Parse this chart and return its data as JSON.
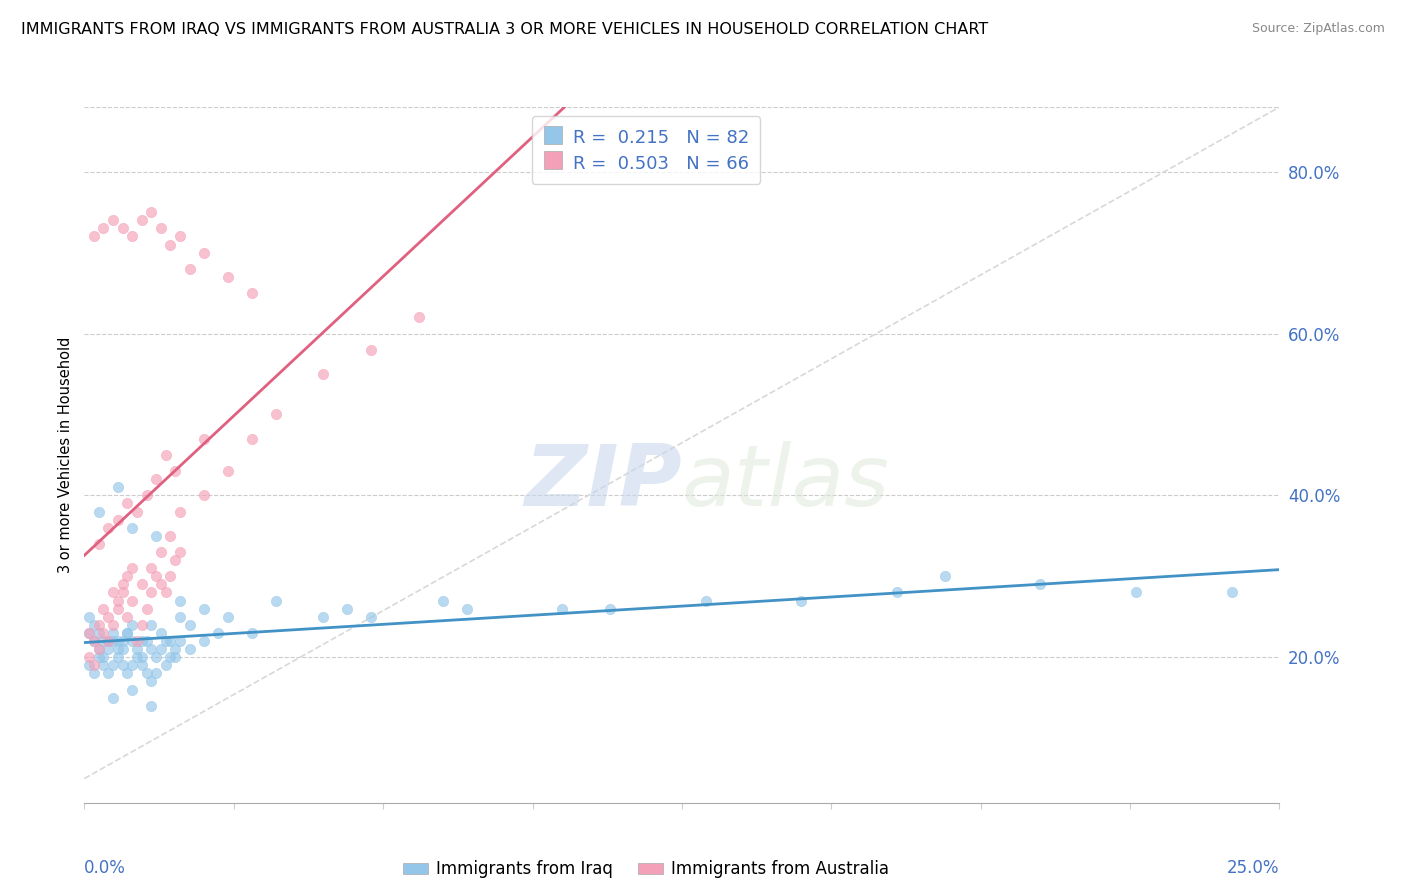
{
  "title": "IMMIGRANTS FROM IRAQ VS IMMIGRANTS FROM AUSTRALIA 3 OR MORE VEHICLES IN HOUSEHOLD CORRELATION CHART",
  "source": "Source: ZipAtlas.com",
  "ylabel": "3 or more Vehicles in Household",
  "ytick_values": [
    0.2,
    0.4,
    0.6,
    0.8
  ],
  "xrange": [
    0.0,
    0.25
  ],
  "yrange": [
    0.02,
    0.88
  ],
  "legend_iraq_r": "0.215",
  "legend_iraq_n": "82",
  "legend_aus_r": "0.503",
  "legend_aus_n": "66",
  "color_iraq": "#93c6e8",
  "color_aus": "#f4a0b8",
  "color_iraq_line": "#4292c6",
  "color_aus_line": "#e06080",
  "color_diagonal": "#d8d8d8",
  "title_fontsize": 11.5,
  "source_fontsize": 9,
  "watermark_zip": "ZIP",
  "watermark_atlas": "atlas",
  "iraq_x": [
    0.001,
    0.002,
    0.003,
    0.004,
    0.005,
    0.006,
    0.007,
    0.008,
    0.009,
    0.01,
    0.011,
    0.012,
    0.013,
    0.014,
    0.015,
    0.016,
    0.017,
    0.018,
    0.019,
    0.02,
    0.001,
    0.002,
    0.003,
    0.004,
    0.005,
    0.006,
    0.007,
    0.008,
    0.009,
    0.01,
    0.011,
    0.012,
    0.013,
    0.014,
    0.015,
    0.017,
    0.019,
    0.022,
    0.025,
    0.028,
    0.001,
    0.002,
    0.003,
    0.004,
    0.005,
    0.006,
    0.007,
    0.008,
    0.009,
    0.01,
    0.012,
    0.014,
    0.016,
    0.018,
    0.02,
    0.022,
    0.025,
    0.03,
    0.04,
    0.05,
    0.06,
    0.08,
    0.1,
    0.13,
    0.15,
    0.17,
    0.2,
    0.22,
    0.24,
    0.003,
    0.007,
    0.01,
    0.015,
    0.02,
    0.035,
    0.055,
    0.075,
    0.11,
    0.18,
    0.006,
    0.01,
    0.014
  ],
  "iraq_y": [
    0.23,
    0.22,
    0.21,
    0.2,
    0.22,
    0.23,
    0.22,
    0.21,
    0.23,
    0.22,
    0.21,
    0.2,
    0.22,
    0.21,
    0.2,
    0.21,
    0.22,
    0.2,
    0.21,
    0.22,
    0.19,
    0.18,
    0.2,
    0.19,
    0.18,
    0.19,
    0.2,
    0.19,
    0.18,
    0.19,
    0.2,
    0.19,
    0.18,
    0.17,
    0.18,
    0.19,
    0.2,
    0.21,
    0.22,
    0.23,
    0.25,
    0.24,
    0.23,
    0.22,
    0.21,
    0.22,
    0.21,
    0.22,
    0.23,
    0.24,
    0.22,
    0.24,
    0.23,
    0.22,
    0.25,
    0.24,
    0.26,
    0.25,
    0.27,
    0.25,
    0.25,
    0.26,
    0.26,
    0.27,
    0.27,
    0.28,
    0.29,
    0.28,
    0.28,
    0.38,
    0.41,
    0.36,
    0.35,
    0.27,
    0.23,
    0.26,
    0.27,
    0.26,
    0.3,
    0.15,
    0.16,
    0.14
  ],
  "aus_x": [
    0.001,
    0.002,
    0.003,
    0.004,
    0.005,
    0.006,
    0.007,
    0.008,
    0.009,
    0.01,
    0.011,
    0.012,
    0.013,
    0.014,
    0.015,
    0.016,
    0.017,
    0.018,
    0.019,
    0.02,
    0.001,
    0.002,
    0.003,
    0.004,
    0.005,
    0.006,
    0.007,
    0.008,
    0.009,
    0.01,
    0.012,
    0.014,
    0.016,
    0.018,
    0.02,
    0.025,
    0.03,
    0.035,
    0.04,
    0.05,
    0.06,
    0.07,
    0.003,
    0.005,
    0.007,
    0.009,
    0.011,
    0.013,
    0.015,
    0.017,
    0.019,
    0.025,
    0.002,
    0.004,
    0.006,
    0.008,
    0.01,
    0.012,
    0.014,
    0.016,
    0.018,
    0.02,
    0.022,
    0.025,
    0.03,
    0.035
  ],
  "aus_y": [
    0.23,
    0.22,
    0.24,
    0.26,
    0.25,
    0.28,
    0.27,
    0.29,
    0.3,
    0.31,
    0.22,
    0.24,
    0.26,
    0.28,
    0.3,
    0.29,
    0.28,
    0.3,
    0.32,
    0.33,
    0.2,
    0.19,
    0.21,
    0.23,
    0.22,
    0.24,
    0.26,
    0.28,
    0.25,
    0.27,
    0.29,
    0.31,
    0.33,
    0.35,
    0.38,
    0.4,
    0.43,
    0.47,
    0.5,
    0.55,
    0.58,
    0.62,
    0.34,
    0.36,
    0.37,
    0.39,
    0.38,
    0.4,
    0.42,
    0.45,
    0.43,
    0.47,
    0.72,
    0.73,
    0.74,
    0.73,
    0.72,
    0.74,
    0.75,
    0.73,
    0.71,
    0.72,
    0.68,
    0.7,
    0.67,
    0.65
  ]
}
